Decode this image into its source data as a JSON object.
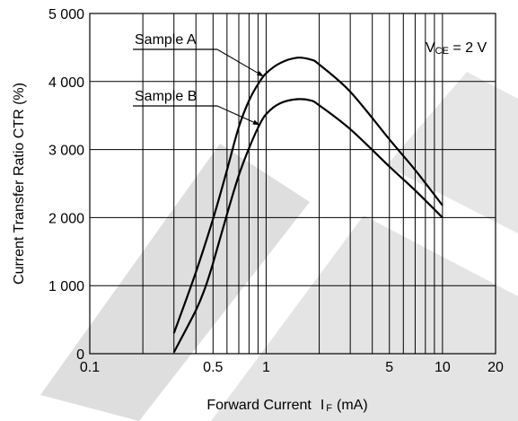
{
  "chart_data": {
    "type": "line",
    "title": "",
    "xlabel": "Forward Current",
    "xlabel_symbol": "I",
    "xlabel_subscript": "F",
    "xlabel_unit": "(mA)",
    "ylabel": "Current Transfer Ratio  CTR (%)",
    "xscale": "log",
    "xlim": [
      0.1,
      20
    ],
    "ylim": [
      0,
      5000
    ],
    "x_ticks": [
      {
        "value": 0.1,
        "label": "0.1"
      },
      {
        "value": 0.5,
        "label": "0.5"
      },
      {
        "value": 1,
        "label": "1"
      },
      {
        "value": 5,
        "label": "5"
      },
      {
        "value": 10,
        "label": "10"
      },
      {
        "value": 20,
        "label": "20"
      }
    ],
    "y_ticks": [
      {
        "value": 0,
        "label": "0"
      },
      {
        "value": 1000,
        "label": "1 000"
      },
      {
        "value": 2000,
        "label": "2 000"
      },
      {
        "value": 3000,
        "label": "3 000"
      },
      {
        "value": 4000,
        "label": "4 000"
      },
      {
        "value": 5000,
        "label": "5 000"
      }
    ],
    "x_gridlines": [
      0.2,
      0.3,
      0.4,
      0.5,
      0.6,
      0.7,
      0.8,
      0.9,
      1,
      2,
      3,
      4,
      5,
      6,
      7,
      8,
      9,
      10
    ],
    "y_gridlines": [
      1000,
      2000,
      3000,
      4000
    ],
    "grid": true,
    "annotation": {
      "prefix": "V",
      "subscript": "CE",
      "suffix": " = 2 V"
    },
    "series": [
      {
        "name": "Sample A",
        "color": "#000000",
        "x": [
          0.3,
          0.4,
          0.5,
          0.6,
          0.7,
          0.8,
          0.9,
          1.0,
          1.2,
          1.5,
          1.8,
          2.0,
          3.0,
          5.0,
          7.0,
          10.0
        ],
        "y": [
          300,
          1200,
          1980,
          2700,
          3330,
          3720,
          3960,
          4120,
          4270,
          4350,
          4320,
          4250,
          3850,
          3150,
          2700,
          2180
        ]
      },
      {
        "name": "Sample B",
        "color": "#000000",
        "x": [
          0.3,
          0.4,
          0.45,
          0.5,
          0.6,
          0.7,
          0.8,
          0.9,
          1.0,
          1.2,
          1.5,
          1.8,
          2.0,
          3.0,
          5.0,
          7.0,
          10.0
        ],
        "y": [
          20,
          640,
          960,
          1330,
          2050,
          2620,
          3020,
          3320,
          3520,
          3680,
          3740,
          3720,
          3650,
          3300,
          2750,
          2400,
          2000
        ]
      }
    ]
  }
}
